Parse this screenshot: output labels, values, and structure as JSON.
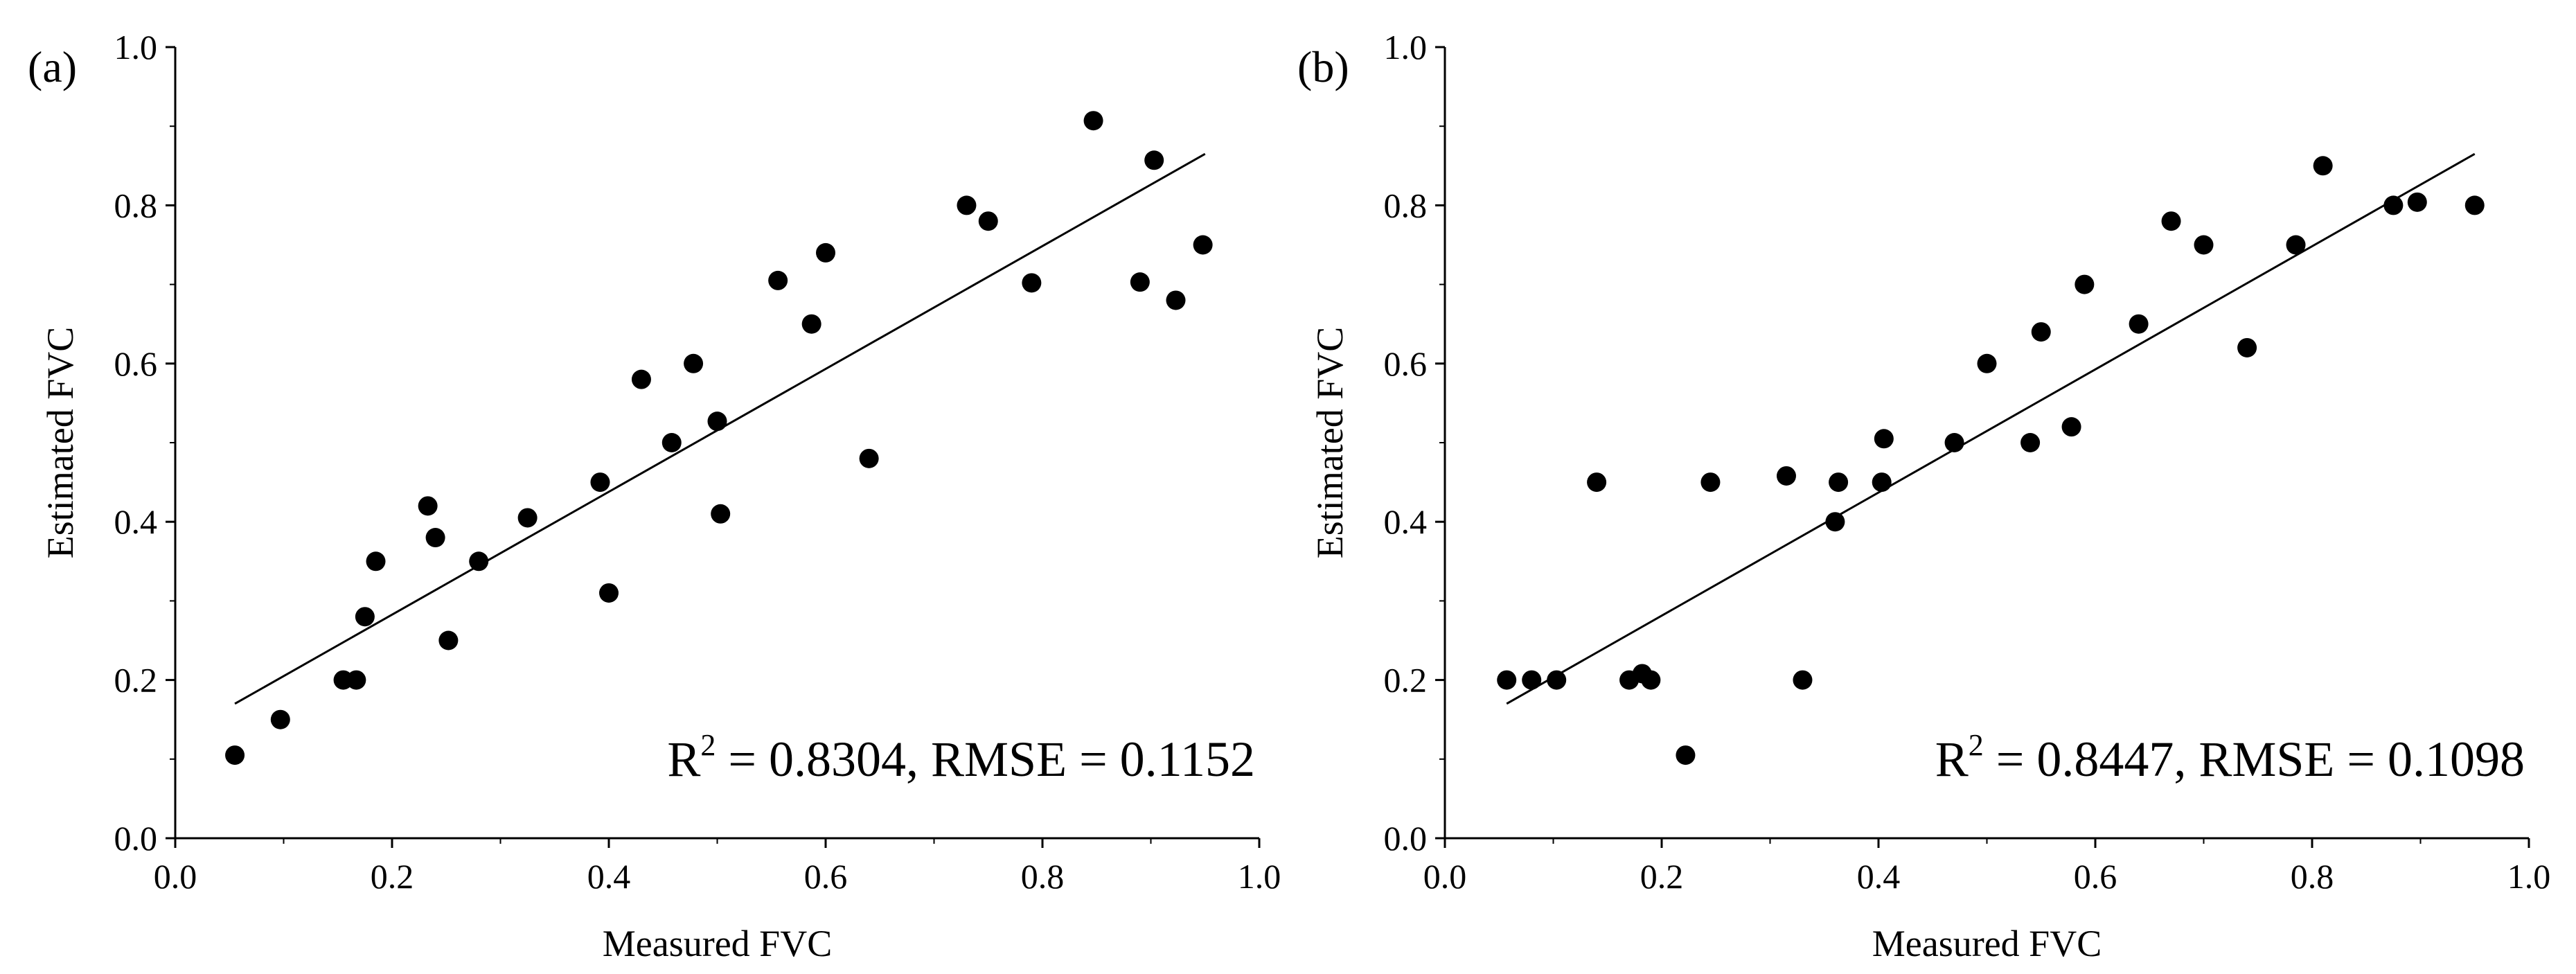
{
  "chart_data": [
    {
      "type": "scatter",
      "panel_label": "(a)",
      "xlabel": "Measured FVC",
      "ylabel": "Estimated FVC",
      "xlim": [
        0.0,
        1.0
      ],
      "ylim": [
        0.0,
        1.0
      ],
      "xticks": [
        0.0,
        0.2,
        0.4,
        0.6,
        0.8,
        1.0
      ],
      "yticks": [
        0.0,
        0.2,
        0.4,
        0.6,
        0.8,
        1.0
      ],
      "tick_labels": [
        "0.0",
        "0.2",
        "0.4",
        "0.6",
        "0.8",
        "1.0"
      ],
      "grid": false,
      "stat_r2_label": "R",
      "stat_r2_sup": "2",
      "stat_r2_rest": " = 0.8304, RMSE = 0.1152",
      "fit_line": {
        "x": [
          0.055,
          0.95
        ],
        "y": [
          0.17,
          0.865
        ]
      },
      "points": [
        [
          0.055,
          0.105
        ],
        [
          0.097,
          0.15
        ],
        [
          0.155,
          0.2
        ],
        [
          0.167,
          0.2
        ],
        [
          0.175,
          0.28
        ],
        [
          0.185,
          0.35
        ],
        [
          0.233,
          0.42
        ],
        [
          0.24,
          0.38
        ],
        [
          0.252,
          0.25
        ],
        [
          0.28,
          0.35
        ],
        [
          0.325,
          0.405
        ],
        [
          0.392,
          0.45
        ],
        [
          0.4,
          0.31
        ],
        [
          0.43,
          0.58
        ],
        [
          0.458,
          0.5
        ],
        [
          0.478,
          0.6
        ],
        [
          0.5,
          0.527
        ],
        [
          0.503,
          0.41
        ],
        [
          0.556,
          0.705
        ],
        [
          0.587,
          0.65
        ],
        [
          0.6,
          0.74
        ],
        [
          0.64,
          0.48
        ],
        [
          0.73,
          0.8
        ],
        [
          0.75,
          0.78
        ],
        [
          0.79,
          0.702
        ],
        [
          0.847,
          0.907
        ],
        [
          0.89,
          0.703
        ],
        [
          0.903,
          0.857
        ],
        [
          0.923,
          0.68
        ],
        [
          0.948,
          0.75
        ]
      ]
    },
    {
      "type": "scatter",
      "panel_label": "(b)",
      "xlabel": "Measured FVC",
      "ylabel": "Estimated FVC",
      "xlim": [
        0.0,
        1.0
      ],
      "ylim": [
        0.0,
        1.0
      ],
      "xticks": [
        0.0,
        0.2,
        0.4,
        0.6,
        0.8,
        1.0
      ],
      "yticks": [
        0.0,
        0.2,
        0.4,
        0.6,
        0.8,
        1.0
      ],
      "tick_labels": [
        "0.0",
        "0.2",
        "0.4",
        "0.6",
        "0.8",
        "1.0"
      ],
      "grid": false,
      "stat_r2_label": "R",
      "stat_r2_sup": "2",
      "stat_r2_rest": " = 0.8447, RMSE = 0.1098",
      "fit_line": {
        "x": [
          0.057,
          0.95
        ],
        "y": [
          0.17,
          0.865
        ]
      },
      "points": [
        [
          0.057,
          0.2
        ],
        [
          0.08,
          0.2
        ],
        [
          0.103,
          0.2
        ],
        [
          0.14,
          0.45
        ],
        [
          0.17,
          0.2
        ],
        [
          0.182,
          0.208
        ],
        [
          0.19,
          0.2
        ],
        [
          0.222,
          0.105
        ],
        [
          0.245,
          0.45
        ],
        [
          0.315,
          0.458
        ],
        [
          0.33,
          0.2
        ],
        [
          0.36,
          0.4
        ],
        [
          0.363,
          0.45
        ],
        [
          0.403,
          0.45
        ],
        [
          0.405,
          0.505
        ],
        [
          0.47,
          0.5
        ],
        [
          0.5,
          0.6
        ],
        [
          0.54,
          0.5
        ],
        [
          0.55,
          0.64
        ],
        [
          0.578,
          0.52
        ],
        [
          0.59,
          0.7
        ],
        [
          0.64,
          0.65
        ],
        [
          0.67,
          0.78
        ],
        [
          0.7,
          0.75
        ],
        [
          0.74,
          0.62
        ],
        [
          0.785,
          0.75
        ],
        [
          0.81,
          0.85
        ],
        [
          0.875,
          0.8
        ],
        [
          0.897,
          0.804
        ],
        [
          0.95,
          0.8
        ]
      ]
    }
  ]
}
